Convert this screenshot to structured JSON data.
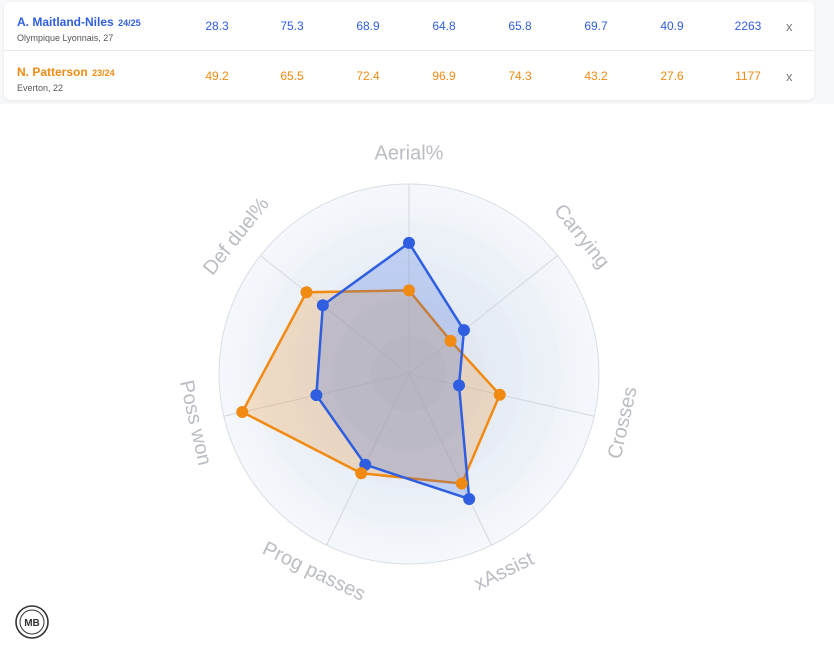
{
  "players": [
    {
      "name": "A. Maitland-Niles",
      "season": "24/25",
      "club": "Olympique Lyonnais, 27",
      "color": "#2f5fe0",
      "values": [
        "28.3",
        "75.3",
        "68.9",
        "64.8",
        "65.8",
        "69.7",
        "40.9",
        "2263"
      ],
      "remove_label": "x"
    },
    {
      "name": "N. Patterson",
      "season": "23/24",
      "club": "Everton, 22",
      "color": "#f08a12",
      "values": [
        "49.2",
        "65.5",
        "72.4",
        "96.9",
        "74.3",
        "43.2",
        "27.6",
        "1177"
      ],
      "remove_label": "x"
    }
  ],
  "chart_data": {
    "type": "radar",
    "axes": [
      "Aerial%",
      "Carrying",
      "Crosses",
      "xAssist",
      "Prog passes",
      "Poss won",
      "Def duel%"
    ],
    "range": [
      0,
      100
    ],
    "series": [
      {
        "name": "A. Maitland-Niles",
        "color": "#2f5fe0",
        "values": [
          69,
          37,
          27,
          73,
          53,
          50,
          58
        ]
      },
      {
        "name": "N. Patterson",
        "color": "#f08a12",
        "values": [
          44,
          28,
          49,
          64,
          58,
          90,
          69
        ]
      }
    ]
  },
  "logo_text": "MB"
}
